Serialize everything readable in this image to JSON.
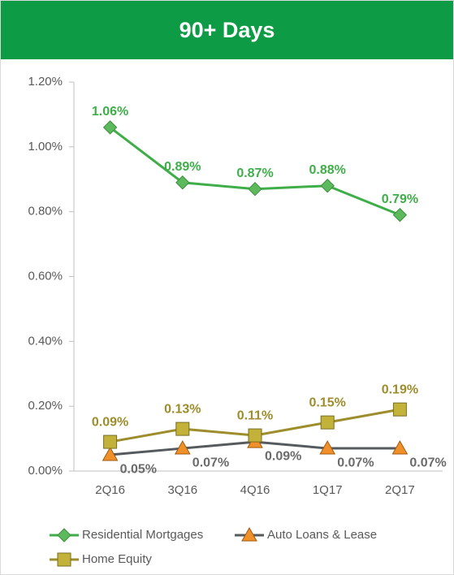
{
  "chart_data": {
    "type": "line",
    "title": "90+ Days",
    "categories": [
      "2Q16",
      "3Q16",
      "4Q16",
      "1Q17",
      "2Q17"
    ],
    "series": [
      {
        "name": "Residential Mortgages",
        "color": "#3fae49",
        "marker_color": "#5cba5c",
        "values": [
          1.06,
          0.89,
          0.87,
          0.88,
          0.79
        ],
        "value_labels": [
          "1.06%",
          "0.89%",
          "0.87%",
          "0.88%",
          "0.79%"
        ]
      },
      {
        "name": "Auto Loans & Lease",
        "color": "#555a5e",
        "marker_color": "#f0902a",
        "values": [
          0.05,
          0.07,
          0.09,
          0.07,
          0.07
        ],
        "value_labels": [
          "0.05%",
          "0.07%",
          "0.09%",
          "0.07%",
          "0.07%"
        ]
      },
      {
        "name": "Home Equity",
        "color": "#9d8d2c",
        "marker_color": "#c3b23a",
        "values": [
          0.09,
          0.13,
          0.11,
          0.15,
          0.19
        ],
        "value_labels": [
          "0.09%",
          "0.13%",
          "0.11%",
          "0.15%",
          "0.19%"
        ]
      }
    ],
    "ylim": [
      0,
      1.2
    ],
    "yticks": [
      {
        "value": 0,
        "label": "0.00%"
      },
      {
        "value": 0.2,
        "label": "0.20%"
      },
      {
        "value": 0.4,
        "label": "0.40%"
      },
      {
        "value": 0.6,
        "label": "0.60%"
      },
      {
        "value": 0.8,
        "label": "0.80%"
      },
      {
        "value": 1.0,
        "label": "1.00%"
      },
      {
        "value": 1.2,
        "label": "1.20%"
      }
    ]
  }
}
